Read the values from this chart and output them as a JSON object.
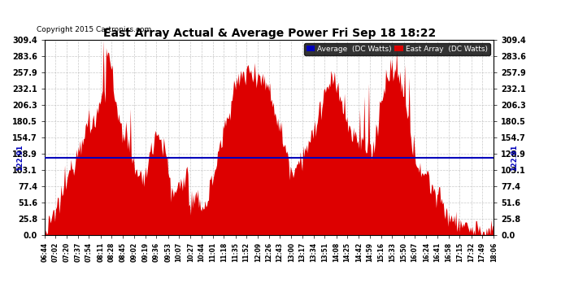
{
  "title": "East Array Actual & Average Power Fri Sep 18 18:22",
  "copyright": "Copyright 2015 Cartronics.com",
  "avg_value": 122.91,
  "avg_label": "122.91",
  "ylim": [
    0.0,
    309.4
  ],
  "yticks": [
    0.0,
    25.8,
    51.6,
    77.4,
    103.1,
    128.9,
    154.7,
    180.5,
    206.3,
    232.1,
    257.9,
    283.6,
    309.4
  ],
  "xtick_labels": [
    "06:44",
    "07:02",
    "07:20",
    "07:37",
    "07:54",
    "08:11",
    "08:28",
    "08:45",
    "09:02",
    "09:19",
    "09:36",
    "09:53",
    "10:07",
    "10:27",
    "10:44",
    "11:01",
    "11:18",
    "11:35",
    "11:52",
    "12:09",
    "12:26",
    "12:43",
    "13:00",
    "13:17",
    "13:34",
    "13:51",
    "14:08",
    "14:25",
    "14:42",
    "14:59",
    "15:16",
    "15:33",
    "15:50",
    "16:07",
    "16:24",
    "16:41",
    "16:58",
    "17:15",
    "17:32",
    "17:49",
    "18:06"
  ],
  "legend_avg_label": "Average  (DC Watts)",
  "legend_east_label": "East Array  (DC Watts)",
  "avg_color": "#0000bb",
  "area_color": "#dd0000",
  "bg_color": "#ffffff",
  "grid_color": "#bbbbbb",
  "title_color": "#000000",
  "legend_avg_bg": "#0000bb",
  "legend_east_bg": "#dd0000"
}
